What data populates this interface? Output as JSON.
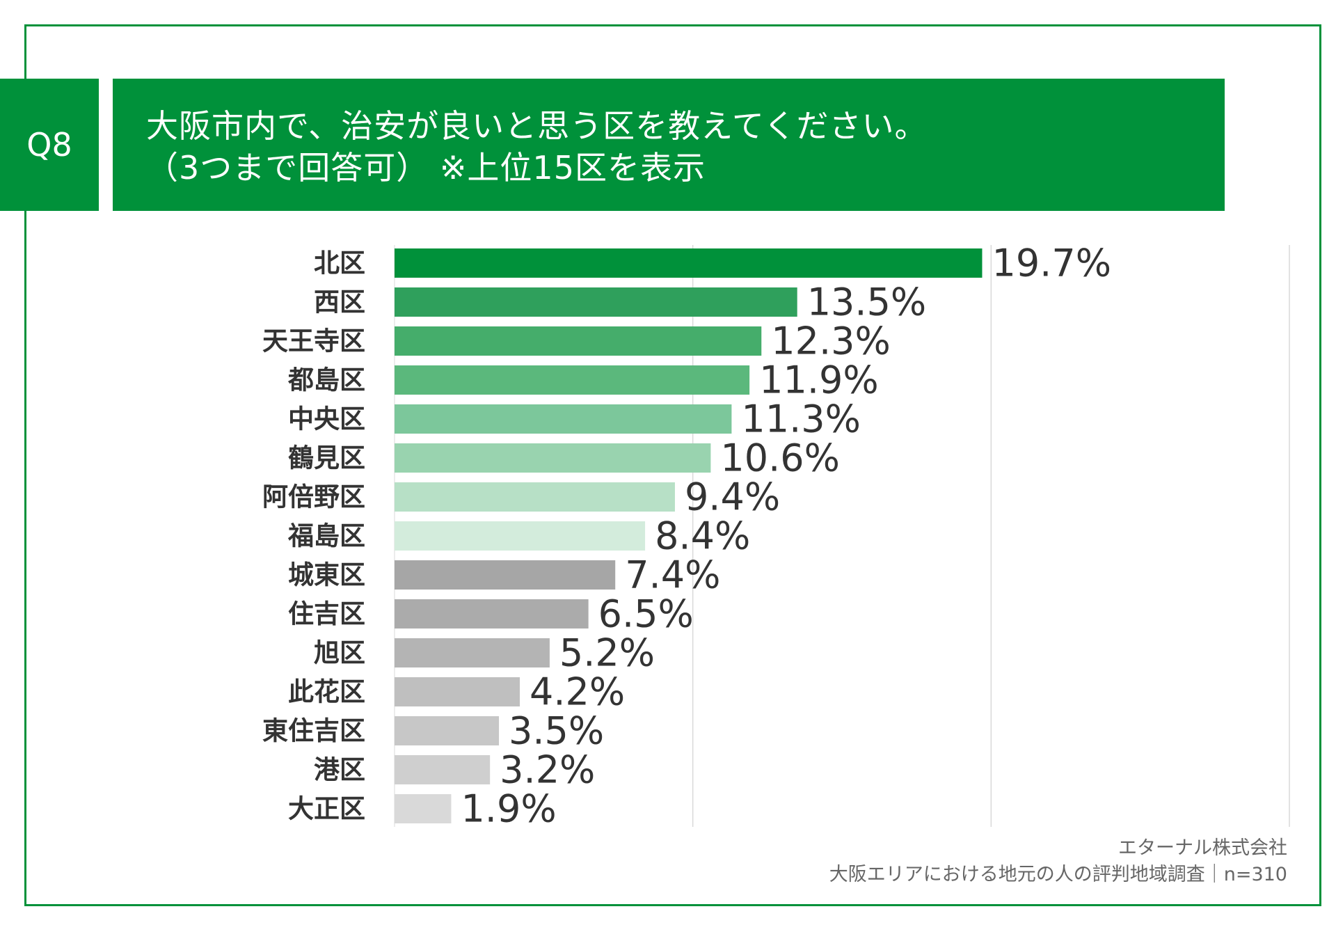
{
  "header": {
    "q_label": "Q8",
    "title_line1": "大阪市内で、治安が良いと思う区を教えてください。",
    "title_line2": "（3つまで回答可） ※上位15区を表示"
  },
  "footer": {
    "company": "エターナル株式会社",
    "survey": "大阪エリアにおける地元の人の評判地域調査｜n=310"
  },
  "colors": {
    "brand": "#00913a",
    "text": "#333333",
    "bars": [
      "#00913a",
      "#2fa05c",
      "#45ad6b",
      "#5bb87c",
      "#7cc79b",
      "#99d3af",
      "#b7e0c6",
      "#d3ecdc",
      "#a6a6a6",
      "#ababab",
      "#b4b4b4",
      "#bfbfbf",
      "#c7c7c7",
      "#cfcfcf",
      "#d9d9d9"
    ]
  },
  "chart_data": {
    "type": "bar",
    "orientation": "horizontal",
    "categories": [
      "北区",
      "西区",
      "天王寺区",
      "都島区",
      "中央区",
      "鶴見区",
      "阿倍野区",
      "福島区",
      "城東区",
      "住吉区",
      "旭区",
      "此花区",
      "東住吉区",
      "港区",
      "大正区"
    ],
    "values": [
      19.7,
      13.5,
      12.3,
      11.9,
      11.3,
      10.6,
      9.4,
      8.4,
      7.4,
      6.5,
      5.2,
      4.2,
      3.5,
      3.2,
      1.9
    ],
    "labels": [
      "19.7%",
      "13.5%",
      "12.3%",
      "11.9%",
      "11.3%",
      "10.6%",
      "9.4%",
      "8.4%",
      "7.4%",
      "6.5%",
      "5.2%",
      "4.2%",
      "3.5%",
      "3.2%",
      "1.9%"
    ],
    "xlim": [
      0,
      30
    ],
    "grid": true,
    "gridlines": [
      10,
      20,
      30
    ]
  }
}
